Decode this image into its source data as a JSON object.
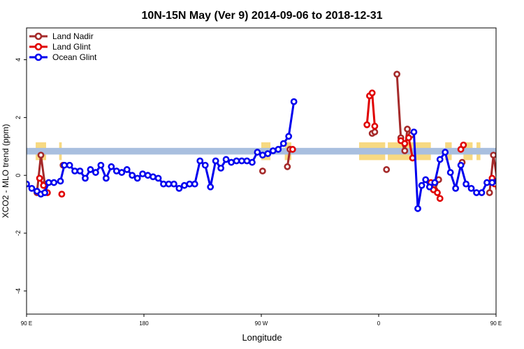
{
  "chart_data": {
    "type": "line",
    "title": "10N-15N May (Ver 9)   2014-09-06 to 2018-12-31",
    "xlabel": "Longitude",
    "ylabel": "XCO2 - MLO trend (ppm)",
    "xlim": [
      90,
      450
    ],
    "ylim": [
      -4.8,
      5.1
    ],
    "x_ticks": [
      {
        "value": 90,
        "label": "90 E"
      },
      {
        "value": 180,
        "label": "180"
      },
      {
        "value": 270,
        "label": "90 W"
      },
      {
        "value": 360,
        "label": "0"
      },
      {
        "value": 450,
        "label": "90 E"
      },
      {
        "value": 540,
        "label": "180"
      }
    ],
    "y_ticks": [
      {
        "value": -4,
        "label": "-4"
      },
      {
        "value": -2,
        "label": "-2"
      },
      {
        "value": 0,
        "label": "0"
      },
      {
        "value": 2,
        "label": "2"
      },
      {
        "value": 4,
        "label": "4"
      }
    ],
    "legend_position": "top-left",
    "band": {
      "y_min": 0.72,
      "y_max": 0.95,
      "color": "#a9bfdf"
    },
    "land_color": "#f7d982",
    "land_spans": [
      {
        "x0": 97,
        "x1": 105
      },
      {
        "x0": 115,
        "x1": 117
      },
      {
        "x0": 270,
        "x1": 277
      },
      {
        "x0": 288,
        "x1": 293
      },
      {
        "x0": 345,
        "x1": 365
      },
      {
        "x0": 367,
        "x1": 400
      },
      {
        "x0": 411,
        "x1": 416
      },
      {
        "x0": 425,
        "x1": 432
      },
      {
        "x0": 435,
        "x1": 438
      },
      {
        "x0": 451,
        "x1": 460
      },
      {
        "x0": 474,
        "x1": 478
      }
    ],
    "series": [
      {
        "name": "Land Nadir",
        "color": "#a52a2a",
        "segments": [
          [
            [
              98,
              -0.6
            ],
            [
              101,
              0.7
            ],
            [
              104,
              -0.3
            ]
          ],
          [
            [
              118,
              0.35
            ]
          ],
          [
            [
              271,
              0.15
            ]
          ],
          [
            [
              290,
              0.3
            ],
            [
              292,
              0.9
            ]
          ],
          [
            [
              355,
              1.45
            ],
            [
              357,
              1.5
            ]
          ],
          [
            [
              366,
              0.2
            ]
          ],
          [
            [
              374,
              3.5
            ],
            [
              377,
              1.3
            ],
            [
              380,
              0.85
            ],
            [
              382,
              1.6
            ],
            [
              385,
              1.4
            ]
          ],
          [
            [
              400,
              -0.3
            ],
            [
              403,
              -0.5
            ],
            [
              406,
              -0.15
            ]
          ],
          [
            [
              424,
              0.45
            ]
          ],
          [
            [
              445,
              -0.6
            ],
            [
              448,
              0.7
            ],
            [
              451,
              -0.2
            ]
          ],
          [
            [
              474,
              0.35
            ]
          ]
        ]
      },
      {
        "name": "Land Glint",
        "color": "#e00000",
        "segments": [
          [
            [
              100,
              -0.1
            ],
            [
              103,
              -0.35
            ],
            [
              106,
              -0.6
            ]
          ],
          [
            [
              117,
              -0.65
            ]
          ],
          [
            [
              294,
              0.9
            ]
          ],
          [
            [
              351,
              1.75
            ],
            [
              353,
              2.75
            ],
            [
              355,
              2.85
            ],
            [
              357,
              1.7
            ]
          ],
          [
            [
              377,
              1.2
            ],
            [
              380,
              1.1
            ],
            [
              383,
              1.3
            ],
            [
              386,
              0.6
            ]
          ],
          [
            [
              400,
              -0.25
            ],
            [
              402,
              -0.5
            ],
            [
              405,
              -0.6
            ],
            [
              407,
              -0.8
            ]
          ],
          [
            [
              423,
              0.9
            ],
            [
              425,
              1.05
            ]
          ],
          [
            [
              447,
              -0.1
            ],
            [
              449,
              -0.3
            ],
            [
              452,
              -0.45
            ]
          ],
          [
            [
              474,
              -0.65
            ]
          ]
        ]
      },
      {
        "name": "Ocean Glint",
        "color": "#0000ee",
        "segments": [
          [
            [
              90,
              -0.3
            ],
            [
              94,
              -0.45
            ],
            [
              98,
              -0.55
            ],
            [
              101,
              -0.65
            ],
            [
              104,
              -0.6
            ],
            [
              107,
              -0.25
            ],
            [
              111,
              -0.25
            ],
            [
              116,
              -0.2
            ],
            [
              119,
              0.35
            ],
            [
              123,
              0.35
            ],
            [
              127,
              0.15
            ],
            [
              131,
              0.15
            ],
            [
              135,
              -0.1
            ],
            [
              139,
              0.2
            ],
            [
              143,
              0.1
            ],
            [
              147,
              0.35
            ],
            [
              151,
              -0.1
            ],
            [
              155,
              0.3
            ],
            [
              159,
              0.15
            ],
            [
              163,
              0.1
            ],
            [
              167,
              0.2
            ],
            [
              171,
              0.0
            ],
            [
              175,
              -0.1
            ],
            [
              179,
              0.05
            ],
            [
              183,
              0.0
            ],
            [
              187,
              -0.05
            ],
            [
              191,
              -0.1
            ],
            [
              195,
              -0.3
            ],
            [
              199,
              -0.3
            ],
            [
              203,
              -0.3
            ],
            [
              207,
              -0.45
            ],
            [
              211,
              -0.35
            ],
            [
              215,
              -0.3
            ],
            [
              219,
              -0.3
            ],
            [
              223,
              0.5
            ],
            [
              227,
              0.35
            ],
            [
              231,
              -0.4
            ],
            [
              235,
              0.5
            ],
            [
              239,
              0.25
            ],
            [
              243,
              0.55
            ],
            [
              247,
              0.45
            ],
            [
              251,
              0.5
            ],
            [
              255,
              0.5
            ],
            [
              259,
              0.5
            ],
            [
              263,
              0.45
            ],
            [
              267,
              0.8
            ],
            [
              271,
              0.7
            ],
            [
              275,
              0.75
            ],
            [
              279,
              0.85
            ],
            [
              283,
              0.9
            ],
            [
              287,
              1.1
            ],
            [
              291,
              1.35
            ],
            [
              295,
              2.55
            ]
          ],
          [
            [
              387,
              1.5
            ],
            [
              390,
              -1.15
            ],
            [
              393,
              -0.35
            ],
            [
              396,
              -0.15
            ],
            [
              399,
              -0.4
            ],
            [
              403,
              -0.25
            ],
            [
              407,
              0.55
            ],
            [
              411,
              0.8
            ],
            [
              415,
              0.1
            ],
            [
              419,
              -0.45
            ],
            [
              423,
              0.35
            ],
            [
              427,
              -0.3
            ],
            [
              431,
              -0.45
            ],
            [
              435,
              -0.6
            ],
            [
              439,
              -0.6
            ],
            [
              443,
              -0.25
            ],
            [
              447,
              -0.25
            ],
            [
              451,
              -0.2
            ],
            [
              455,
              0.35
            ],
            [
              459,
              0.35
            ],
            [
              463,
              0.15
            ],
            [
              467,
              0.15
            ],
            [
              471,
              -0.15
            ],
            [
              475,
              0.15
            ],
            [
              479,
              0.05
            ],
            [
              483,
              0.35
            ],
            [
              487,
              -0.1
            ],
            [
              491,
              0.3
            ],
            [
              495,
              0.2
            ]
          ]
        ]
      }
    ]
  }
}
